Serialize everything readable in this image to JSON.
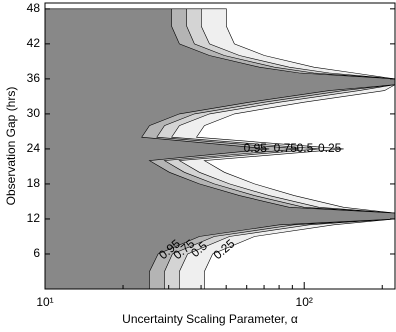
{
  "chart_data": {
    "type": "contour",
    "x_label": "Uncertainty Scaling Parameter, α",
    "y_label": "Observation Gap (hrs)",
    "xlog": true,
    "xlim": [
      10,
      224
    ],
    "xticks": [
      {
        "value": 10,
        "label": "10¹"
      },
      {
        "value": 100,
        "label": "10²"
      }
    ],
    "xminor_ticks": [
      20,
      30,
      40,
      50,
      60,
      70,
      80,
      90,
      200
    ],
    "ylim": [
      0,
      49
    ],
    "yticks": [
      6,
      12,
      18,
      24,
      30,
      36,
      42,
      48
    ],
    "y": [
      0,
      3,
      6,
      9,
      11,
      12,
      13,
      14,
      16,
      18,
      20,
      22,
      24,
      26,
      28,
      30,
      32,
      34,
      35,
      36,
      37,
      38,
      40,
      42,
      45,
      48
    ],
    "series": [
      {
        "name": "0.25",
        "color": "#efefef",
        "values": [
          41.2,
          41.2,
          44.3,
          64.3,
          130,
          224,
          224,
          142,
          91.5,
          64.3,
          49.2,
          41.2,
          142,
          38.4,
          41.2,
          53.8,
          100,
          204,
          224,
          224,
          156,
          109,
          70.2,
          53.8,
          50.1,
          50.1
        ]
      },
      {
        "name": "0.5",
        "color": "#d4d4d4",
        "values": [
          33.0,
          33.0,
          35.5,
          51.5,
          104.6,
          224,
          224,
          114,
          73.3,
          51.5,
          39.4,
          33.0,
          114,
          30.8,
          33.0,
          43.1,
          80.3,
          163,
          224,
          224,
          125,
          87.6,
          56.3,
          43.1,
          40.1,
          40.1
        ]
      },
      {
        "name": "0.75",
        "color": "#b4b4b4",
        "values": [
          28.9,
          28.9,
          31.0,
          45.0,
          91.5,
          224,
          224,
          100,
          64.3,
          45.0,
          34.5,
          28.9,
          95.7,
          27.0,
          28.9,
          37.7,
          70.2,
          142,
          224,
          224,
          109,
          76.8,
          49.2,
          37.7,
          35.2,
          35.2
        ]
      },
      {
        "name": "0.95",
        "color": "#888888",
        "values": [
          25.3,
          25.3,
          27.3,
          39.4,
          80.3,
          224,
          224,
          87.6,
          56.3,
          39.4,
          30.2,
          25.3,
          73.3,
          23.6,
          25.3,
          33.0,
          61.5,
          125,
          224,
          224,
          95.7,
          67.2,
          43.1,
          33.0,
          30.8,
          30.8
        ]
      }
    ]
  }
}
